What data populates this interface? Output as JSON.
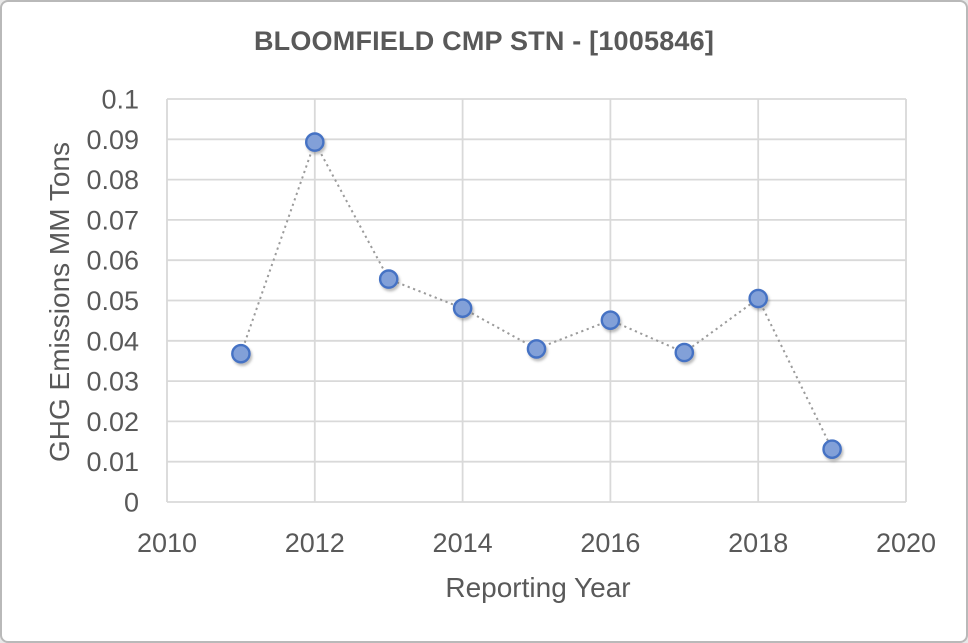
{
  "chart_data": {
    "type": "line",
    "title": "BLOOMFIELD CMP STN - [1005846]",
    "xlabel": "Reporting Year",
    "ylabel": "GHG Emissions MM Tons",
    "x": [
      2011,
      2012,
      2013,
      2014,
      2015,
      2016,
      2017,
      2018,
      2019
    ],
    "values": [
      0.0368,
      0.0893,
      0.0553,
      0.0481,
      0.038,
      0.0451,
      0.0371,
      0.0505,
      0.0131
    ],
    "series_name": "GHG Emissions",
    "xlim": [
      2010,
      2020
    ],
    "ylim": [
      0,
      0.1
    ],
    "x_tick_values": [
      2010,
      2012,
      2014,
      2016,
      2018,
      2020
    ],
    "x_tick_labels": [
      "2010",
      "2012",
      "2014",
      "2016",
      "2018",
      "2020"
    ],
    "y_tick_values": [
      0,
      0.01,
      0.02,
      0.03,
      0.04,
      0.05,
      0.06,
      0.07,
      0.08,
      0.09,
      0.1
    ],
    "y_tick_labels": [
      "0",
      "0.01",
      "0.02",
      "0.03",
      "0.04",
      "0.05",
      "0.06",
      "0.07",
      "0.08",
      "0.09",
      "0.1"
    ],
    "grid": true,
    "legend": false,
    "colors": {
      "marker_fill": "#82A0D8",
      "marker_stroke": "#4472C4",
      "line": "#9b9b9b",
      "gridline": "#D9D9D9",
      "text": "#595959",
      "frame_border": "#b9b9b9",
      "background": "#ffffff"
    }
  }
}
